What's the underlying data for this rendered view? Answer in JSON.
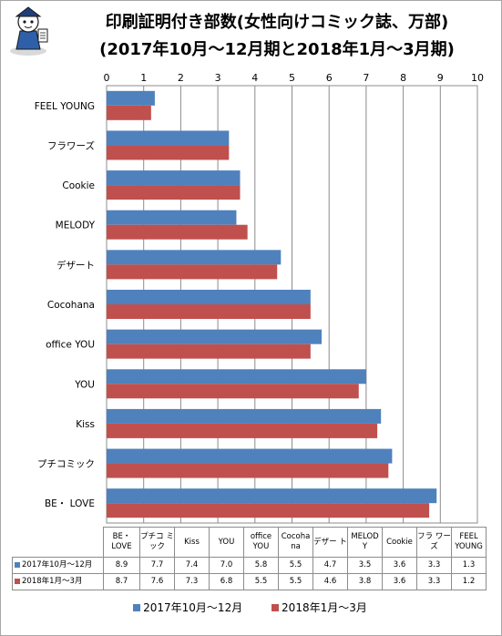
{
  "colors": {
    "series1": "#4f81bd",
    "series2": "#c0504d",
    "grid": "#8c8c8c"
  },
  "mascot_icon": "cartoon-mascot-icon",
  "chart_data": {
    "type": "bar",
    "orientation": "horizontal",
    "title": "印刷証明付き部数(女性向けコミック誌、万部)",
    "subtitle": "(2017年10月～12月期と2018年1月～3月期)",
    "xlim": [
      0,
      10
    ],
    "x_ticks": [
      "0",
      "1",
      "2",
      "3",
      "4",
      "5",
      "6",
      "7",
      "8",
      "9",
      "10"
    ],
    "grid": true,
    "legend_position": "bottom",
    "categories": [
      "BE・LOVE",
      "プチコミック",
      "Kiss",
      "YOU",
      "office YOU",
      "Cocohana",
      "デザート",
      "MELODY",
      "Cookie",
      "フラワーズ",
      "FEEL YOUNG"
    ],
    "axis_labels": [
      "BE・ LOVE",
      "プチコミック",
      "Kiss",
      "YOU",
      "office YOU",
      "Cocohana",
      "デザート",
      "MELODY",
      "Cookie",
      "フラワーズ",
      "FEEL YOUNG"
    ],
    "table_headers": [
      "BE・ LOVE",
      "プチコ ミック",
      "Kiss",
      "YOU",
      "office YOU",
      "Cocoha na",
      "デザー ト",
      "MELOD Y",
      "Cookie",
      "フラ ワーズ",
      "FEEL YOUNG"
    ],
    "series": [
      {
        "name": "2017年10月～12月",
        "values": [
          8.9,
          7.7,
          7.4,
          7.0,
          5.8,
          5.5,
          4.7,
          3.5,
          3.6,
          3.3,
          1.3
        ],
        "labels": [
          "8.9",
          "7.7",
          "7.4",
          "7.0",
          "5.8",
          "5.5",
          "4.7",
          "3.5",
          "3.6",
          "3.3",
          "1.3"
        ]
      },
      {
        "name": "2018年1月～3月",
        "values": [
          8.7,
          7.6,
          7.3,
          6.8,
          5.5,
          5.5,
          4.6,
          3.8,
          3.6,
          3.3,
          1.2
        ],
        "labels": [
          "8.7",
          "7.6",
          "7.3",
          "6.8",
          "5.5",
          "5.5",
          "4.6",
          "3.8",
          "3.6",
          "3.3",
          "1.2"
        ]
      }
    ]
  }
}
